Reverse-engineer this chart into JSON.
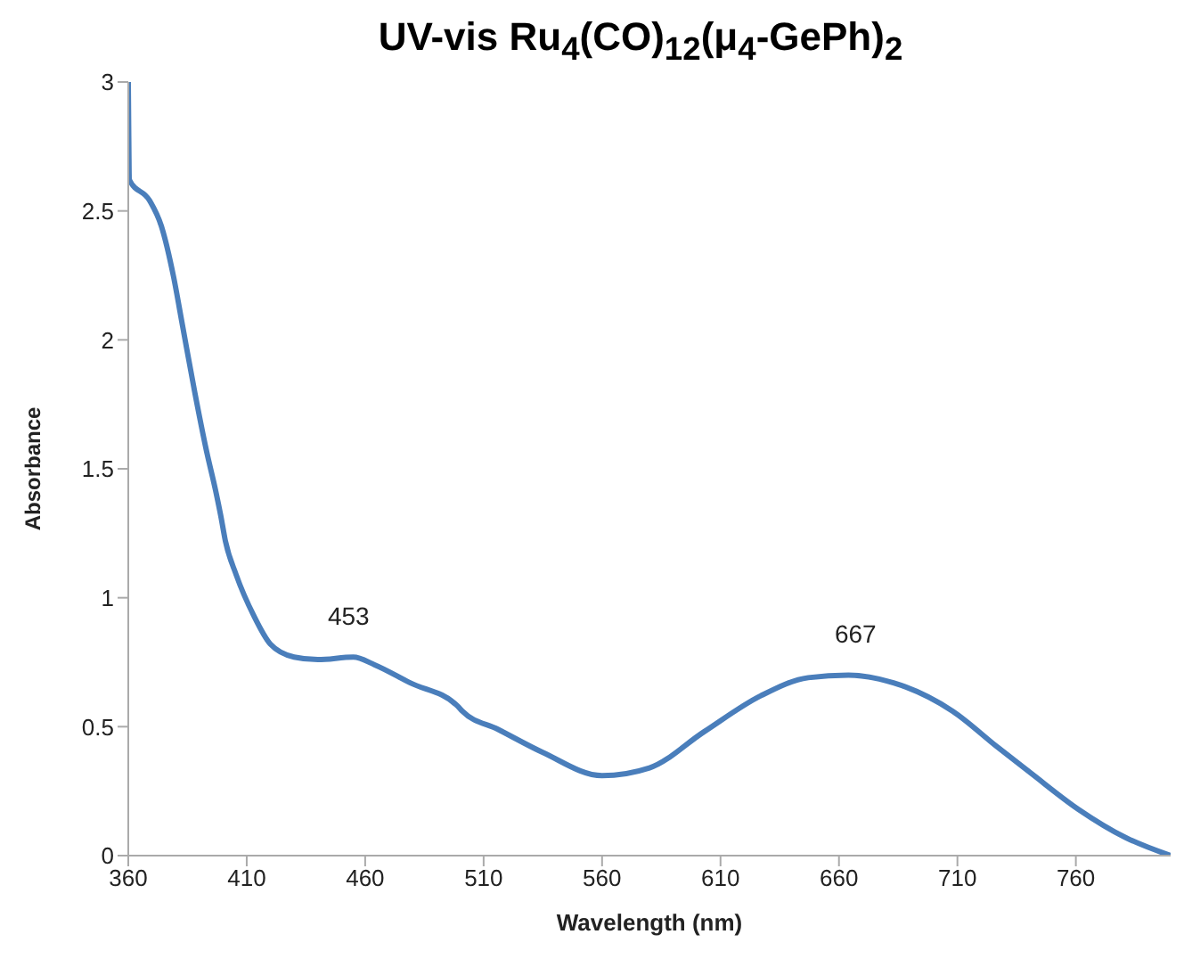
{
  "chart_data": {
    "type": "line",
    "title": "UV-vis Ru$_{4}$(CO)$_{12}$(μ$_{4}$-GePh)$_{2}$",
    "xlabel": "Wavelength (nm)",
    "ylabel": "Absorbance",
    "xlim": [
      360,
      800
    ],
    "xticks": [
      360,
      410,
      460,
      510,
      560,
      610,
      660,
      710,
      760
    ],
    "ylim": [
      0,
      3
    ],
    "yticks": [
      0,
      0.5,
      1,
      1.5,
      2,
      2.5,
      3
    ],
    "x": [
      360,
      360.5,
      369,
      374,
      379,
      383,
      388,
      393,
      397,
      399,
      401,
      405.5,
      413,
      420,
      430,
      440,
      455,
      464,
      479,
      499,
      501,
      516,
      535,
      560,
      580,
      603,
      627,
      647,
      664,
      683,
      708,
      727,
      741,
      761,
      781,
      800
    ],
    "series": [
      {
        "color": "#4a7ebb",
        "values": [
          3.0,
          2.62,
          2.54,
          2.44,
          2.25,
          2.05,
          1.8,
          1.57,
          1.41,
          1.32,
          1.22,
          1.09,
          0.93,
          0.82,
          0.77,
          0.76,
          0.77,
          0.74,
          0.67,
          0.58,
          0.56,
          0.49,
          0.4,
          0.31,
          0.34,
          0.48,
          0.62,
          0.69,
          0.7,
          0.67,
          0.56,
          0.42,
          0.32,
          0.18,
          0.07,
          0.0
        ]
      }
    ],
    "annotations": [
      {
        "text": "453",
        "x": 453,
        "y": 0.77
      },
      {
        "text": "667",
        "x": 667,
        "y": 0.7
      }
    ],
    "marker": "none"
  }
}
